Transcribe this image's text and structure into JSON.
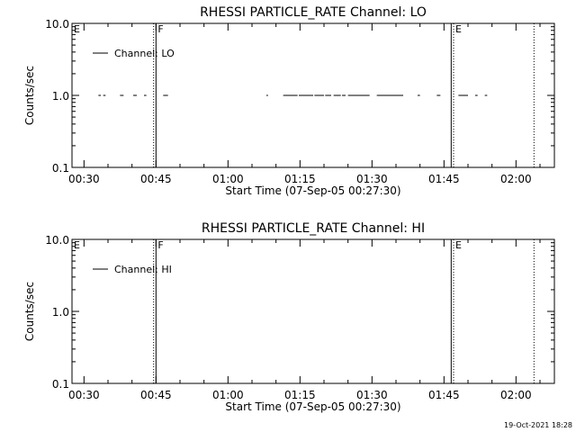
{
  "footer": {
    "timestamp": "19-Oct-2021 18:28"
  },
  "chart_data": [
    {
      "type": "line",
      "title": "RHESSI PARTICLE_RATE Channel: LO",
      "xlabel": "Start Time (07-Sep-05 00:27:30)",
      "ylabel": "Counts/sec",
      "yscale": "log",
      "ylim": [
        0.1,
        10.0
      ],
      "yticks": [
        "0.1",
        "1.0",
        "10.0"
      ],
      "xlim": [
        "00:27:30",
        "02:08:00"
      ],
      "xticks": [
        "00:30",
        "00:45",
        "01:00",
        "01:15",
        "01:30",
        "01:45",
        "02:00"
      ],
      "legend": {
        "label": "Channel: LO",
        "position": "top-left"
      },
      "markers": [
        {
          "label": "E",
          "time": "00:27:30",
          "style": "solid"
        },
        {
          "label": "",
          "time": "00:44:30",
          "style": "dotted"
        },
        {
          "label": "F",
          "time": "00:45:00",
          "style": "solid"
        },
        {
          "label": "",
          "time": "01:46:30",
          "style": "solid"
        },
        {
          "label": "E",
          "time": "01:47:00",
          "style": "dotted"
        },
        {
          "label": "",
          "time": "02:03:45",
          "style": "dotted"
        }
      ],
      "series": [
        {
          "value": 1.0,
          "segments": [
            [
              "00:33:00",
              "00:33:30"
            ],
            [
              "00:34:00",
              "00:34:30"
            ],
            [
              "00:37:30",
              "00:38:15"
            ],
            [
              "00:40:15",
              "00:41:00"
            ],
            [
              "00:42:30",
              "00:43:00"
            ],
            [
              "00:46:30",
              "00:47:30"
            ],
            [
              "01:08:00",
              "01:08:20"
            ],
            [
              "01:11:30",
              "01:14:30"
            ],
            [
              "01:14:45",
              "01:17:45"
            ],
            [
              "01:18:00",
              "01:20:00"
            ],
            [
              "01:20:15",
              "01:21:30"
            ],
            [
              "01:22:00",
              "01:23:30"
            ],
            [
              "01:23:45",
              "01:24:30"
            ],
            [
              "01:25:00",
              "01:29:30"
            ],
            [
              "01:31:00",
              "01:36:30"
            ],
            [
              "01:39:30",
              "01:40:00"
            ],
            [
              "01:43:30",
              "01:44:15"
            ],
            [
              "01:48:00",
              "01:50:00"
            ],
            [
              "01:51:30",
              "01:52:00"
            ],
            [
              "01:53:30",
              "01:54:00"
            ]
          ]
        }
      ]
    },
    {
      "type": "line",
      "title": "RHESSI PARTICLE_RATE Channel: HI",
      "xlabel": "Start Time (07-Sep-05 00:27:30)",
      "ylabel": "Counts/sec",
      "yscale": "log",
      "ylim": [
        0.1,
        10.0
      ],
      "yticks": [
        "0.1",
        "1.0",
        "10.0"
      ],
      "xlim": [
        "00:27:30",
        "02:08:00"
      ],
      "xticks": [
        "00:30",
        "00:45",
        "01:00",
        "01:15",
        "01:30",
        "01:45",
        "02:00"
      ],
      "legend": {
        "label": "Channel: HI",
        "position": "top-left"
      },
      "markers": [
        {
          "label": "E",
          "time": "00:27:30",
          "style": "solid"
        },
        {
          "label": "",
          "time": "00:44:30",
          "style": "dotted"
        },
        {
          "label": "F",
          "time": "00:45:00",
          "style": "solid"
        },
        {
          "label": "",
          "time": "01:46:30",
          "style": "solid"
        },
        {
          "label": "E",
          "time": "01:47:00",
          "style": "dotted"
        },
        {
          "label": "",
          "time": "02:03:45",
          "style": "dotted"
        }
      ],
      "series": [
        {
          "value": null,
          "segments": []
        }
      ]
    }
  ]
}
